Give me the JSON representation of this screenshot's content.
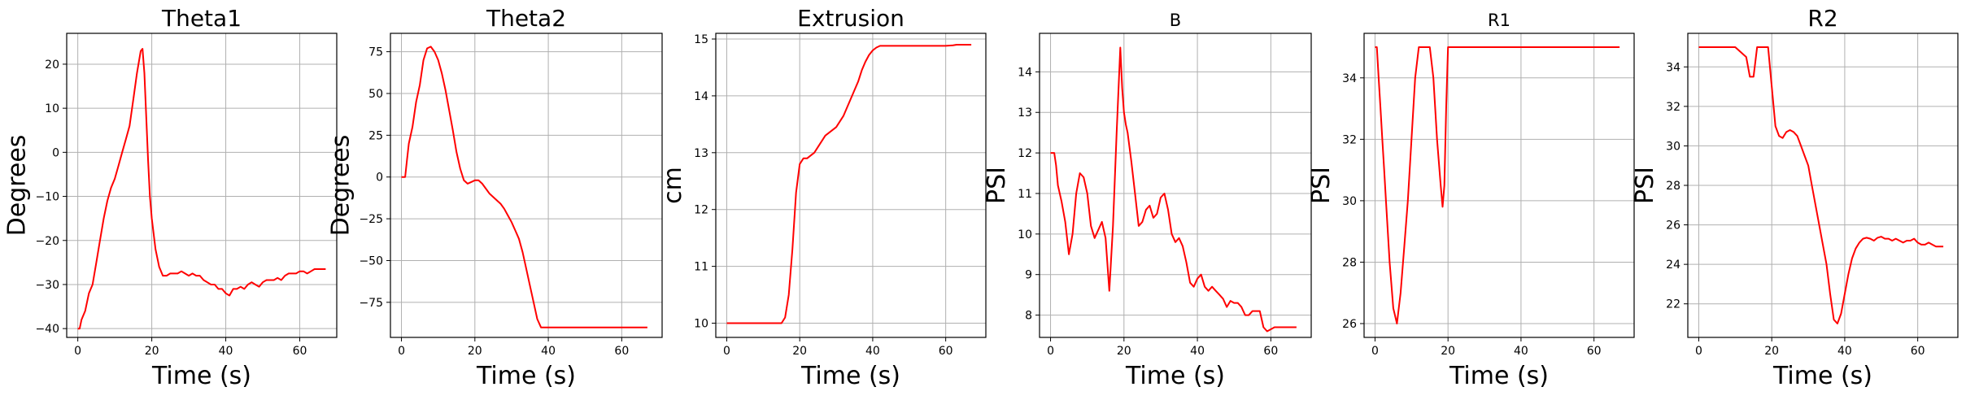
{
  "chart_data": [
    {
      "type": "line",
      "title": "Theta1",
      "xlabel": "Time (s)",
      "ylabel": "Degrees",
      "xlim": [
        -3,
        70
      ],
      "ylim": [
        -42,
        27
      ],
      "xticks": [
        0,
        20,
        40,
        60
      ],
      "yticks": [
        -40,
        -30,
        -20,
        -10,
        0,
        10,
        20
      ],
      "grid": true,
      "series": [
        {
          "color": "#ff0000",
          "x": [
            0,
            0.5,
            1,
            2,
            3,
            4,
            5,
            6,
            7,
            8,
            9,
            10,
            11,
            12,
            13,
            14,
            15,
            16,
            17,
            17.5,
            18,
            18.5,
            19,
            19.5,
            20,
            21,
            22,
            23,
            24,
            25,
            26,
            27,
            28,
            29,
            30,
            31,
            32,
            33,
            34,
            35,
            36,
            37,
            38,
            39,
            40,
            41,
            42,
            43,
            44,
            45,
            46,
            47,
            48,
            49,
            50,
            51,
            52,
            53,
            54,
            55,
            56,
            57,
            58,
            59,
            60,
            61,
            62,
            63,
            64,
            65,
            66,
            67
          ],
          "y": [
            -40,
            -40,
            -38,
            -36,
            -32,
            -30,
            -25,
            -20,
            -15,
            -11,
            -8,
            -6,
            -3,
            0,
            3,
            6,
            12,
            18,
            23,
            23.5,
            18,
            8,
            -2,
            -10,
            -15,
            -22,
            -26,
            -28,
            -28,
            -27.5,
            -27.5,
            -27.5,
            -27,
            -27.5,
            -28,
            -27.5,
            -28,
            -28,
            -29,
            -29.5,
            -30,
            -30,
            -31,
            -31,
            -32,
            -32.5,
            -31,
            -31,
            -30.5,
            -31,
            -30,
            -29.5,
            -30,
            -30.5,
            -29.5,
            -29,
            -29,
            -29,
            -28.5,
            -29,
            -28,
            -27.5,
            -27.5,
            -27.5,
            -27,
            -27,
            -27.5,
            -27,
            -26.5,
            -26.5,
            -26.5,
            -26.5
          ]
        }
      ]
    },
    {
      "type": "line",
      "title": "Theta2",
      "xlabel": "Time (s)",
      "ylabel": "Degrees",
      "xlim": [
        -3,
        71
      ],
      "ylim": [
        -96,
        86
      ],
      "xticks": [
        0,
        20,
        40,
        60
      ],
      "yticks": [
        -75,
        -50,
        -25,
        0,
        25,
        50,
        75
      ],
      "grid": true,
      "series": [
        {
          "color": "#ff0000",
          "x": [
            0,
            1,
            1.5,
            2,
            3,
            4,
            5,
            6,
            7,
            8,
            9,
            10,
            11,
            12,
            13,
            14,
            15,
            16,
            17,
            18,
            19,
            20,
            21,
            22,
            23,
            24,
            25,
            26,
            27,
            28,
            29,
            30,
            31,
            32,
            33,
            34,
            35,
            36,
            37,
            38,
            39,
            40,
            50,
            60,
            67
          ],
          "y": [
            0,
            0,
            10,
            20,
            30,
            45,
            55,
            70,
            77,
            78,
            75,
            70,
            62,
            52,
            40,
            28,
            15,
            5,
            -2,
            -4,
            -3,
            -2,
            -2,
            -4,
            -7,
            -10,
            -12,
            -14,
            -16,
            -19,
            -23,
            -27,
            -32,
            -37,
            -45,
            -55,
            -65,
            -75,
            -85,
            -90,
            -90,
            -90,
            -90,
            -90,
            -90
          ]
        }
      ]
    },
    {
      "type": "line",
      "title": "Extrusion",
      "xlabel": "Time (s)",
      "ylabel": "cm",
      "xlim": [
        -3,
        71
      ],
      "ylim": [
        9.75,
        15.1
      ],
      "xticks": [
        0,
        20,
        40,
        60
      ],
      "yticks": [
        10,
        11,
        12,
        13,
        14,
        15
      ],
      "grid": true,
      "series": [
        {
          "color": "#ff0000",
          "x": [
            0,
            15,
            16,
            17,
            18,
            19,
            20,
            21,
            22,
            23,
            24,
            25,
            26,
            27,
            28,
            29,
            30,
            31,
            32,
            33,
            34,
            35,
            36,
            37,
            38,
            39,
            40,
            41,
            42,
            43,
            45,
            50,
            55,
            60,
            62,
            63,
            65,
            67
          ],
          "y": [
            10,
            10,
            10.1,
            10.5,
            11.3,
            12.3,
            12.8,
            12.9,
            12.9,
            12.95,
            13.0,
            13.1,
            13.2,
            13.3,
            13.35,
            13.4,
            13.45,
            13.55,
            13.65,
            13.8,
            13.95,
            14.1,
            14.25,
            14.45,
            14.6,
            14.72,
            14.8,
            14.85,
            14.88,
            14.88,
            14.88,
            14.88,
            14.88,
            14.88,
            14.89,
            14.9,
            14.9,
            14.9
          ]
        }
      ]
    },
    {
      "type": "line",
      "title": "B",
      "xlabel": "Time (s)",
      "ylabel": "PSI",
      "xlim": [
        -3,
        71
      ],
      "ylim": [
        7.45,
        14.95
      ],
      "xticks": [
        0,
        20,
        40,
        60
      ],
      "yticks": [
        8,
        9,
        10,
        11,
        12,
        13,
        14
      ],
      "grid": true,
      "series": [
        {
          "color": "#ff0000",
          "x": [
            0,
            1,
            1.5,
            2,
            3,
            4,
            5,
            6,
            7,
            8,
            9,
            10,
            11,
            12,
            13,
            14,
            15,
            16,
            17,
            18,
            19,
            19.5,
            20,
            20.5,
            21,
            22,
            23,
            24,
            25,
            26,
            27,
            28,
            29,
            30,
            31,
            32,
            33,
            34,
            35,
            36,
            37,
            38,
            39,
            40,
            41,
            42,
            43,
            44,
            45,
            46,
            47,
            48,
            49,
            50,
            51,
            52,
            53,
            54,
            55,
            56,
            57,
            58,
            59,
            60,
            61,
            62,
            63,
            64,
            65,
            66,
            67
          ],
          "y": [
            12,
            12,
            11.7,
            11.2,
            10.8,
            10.3,
            9.5,
            10.0,
            11.0,
            11.5,
            11.4,
            11.0,
            10.2,
            9.9,
            10.1,
            10.3,
            9.9,
            8.6,
            10.2,
            12.5,
            14.6,
            13.6,
            13.0,
            12.7,
            12.5,
            11.8,
            11.0,
            10.2,
            10.3,
            10.6,
            10.7,
            10.4,
            10.5,
            10.9,
            11.0,
            10.6,
            10.0,
            9.8,
            9.9,
            9.7,
            9.3,
            8.8,
            8.7,
            8.9,
            9.0,
            8.7,
            8.6,
            8.7,
            8.6,
            8.5,
            8.4,
            8.2,
            8.35,
            8.3,
            8.3,
            8.2,
            8.0,
            8.0,
            8.1,
            8.1,
            8.1,
            7.7,
            7.6,
            7.65,
            7.7,
            7.7,
            7.7,
            7.7,
            7.7,
            7.7,
            7.7
          ]
        }
      ]
    },
    {
      "type": "line",
      "title": "R1",
      "xlabel": "Time (s)",
      "ylabel": "PSI",
      "xlim": [
        -3,
        71
      ],
      "ylim": [
        25.55,
        35.45
      ],
      "xticks": [
        0,
        20,
        40,
        60
      ],
      "yticks": [
        26,
        28,
        30,
        32,
        34
      ],
      "grid": true,
      "series": [
        {
          "color": "#ff0000",
          "x": [
            0,
            0.5,
            1,
            1.5,
            2,
            2.5,
            3,
            4,
            5,
            6,
            7,
            8,
            9,
            10,
            11,
            12,
            13,
            14,
            15,
            16,
            17,
            18,
            18.5,
            19,
            19.5,
            20,
            21,
            22,
            30,
            40,
            50,
            60,
            67
          ],
          "y": [
            35,
            35,
            34,
            33,
            32,
            31,
            30,
            28,
            26.5,
            26,
            27,
            28.5,
            30,
            32,
            34,
            35,
            35,
            35,
            35,
            34,
            32,
            30.5,
            29.8,
            30.5,
            33,
            35,
            35,
            35,
            35,
            35,
            35,
            35,
            35
          ]
        }
      ]
    },
    {
      "type": "line",
      "title": "R2",
      "xlabel": "Time (s)",
      "ylabel": "PSI",
      "xlim": [
        -3,
        71
      ],
      "ylim": [
        20.3,
        35.7
      ],
      "xticks": [
        0,
        20,
        40,
        60
      ],
      "yticks": [
        22,
        24,
        26,
        28,
        30,
        32,
        34
      ],
      "grid": true,
      "series": [
        {
          "color": "#ff0000",
          "x": [
            0,
            5,
            10,
            13,
            14,
            15,
            16,
            17,
            18,
            19,
            20,
            21,
            22,
            23,
            24,
            25,
            26,
            27,
            28,
            29,
            30,
            31,
            32,
            33,
            34,
            35,
            36,
            37,
            38,
            39,
            40,
            41,
            42,
            43,
            44,
            45,
            46,
            47,
            48,
            49,
            50,
            51,
            52,
            53,
            54,
            55,
            56,
            57,
            58,
            59,
            60,
            61,
            62,
            63,
            64,
            65,
            66,
            67
          ],
          "y": [
            35,
            35,
            35,
            34.5,
            33.5,
            33.5,
            35,
            35,
            35,
            35,
            33,
            31,
            30.5,
            30.4,
            30.7,
            30.8,
            30.7,
            30.5,
            30,
            29.5,
            29,
            28,
            27,
            26,
            25,
            24,
            22.5,
            21.2,
            21,
            21.5,
            22.5,
            23.5,
            24.3,
            24.8,
            25.1,
            25.3,
            25.35,
            25.3,
            25.2,
            25.35,
            25.4,
            25.3,
            25.3,
            25.2,
            25.3,
            25.2,
            25.1,
            25.2,
            25.2,
            25.3,
            25.1,
            25.0,
            25.0,
            25.1,
            25.0,
            24.9,
            24.9,
            24.9
          ]
        }
      ]
    }
  ]
}
